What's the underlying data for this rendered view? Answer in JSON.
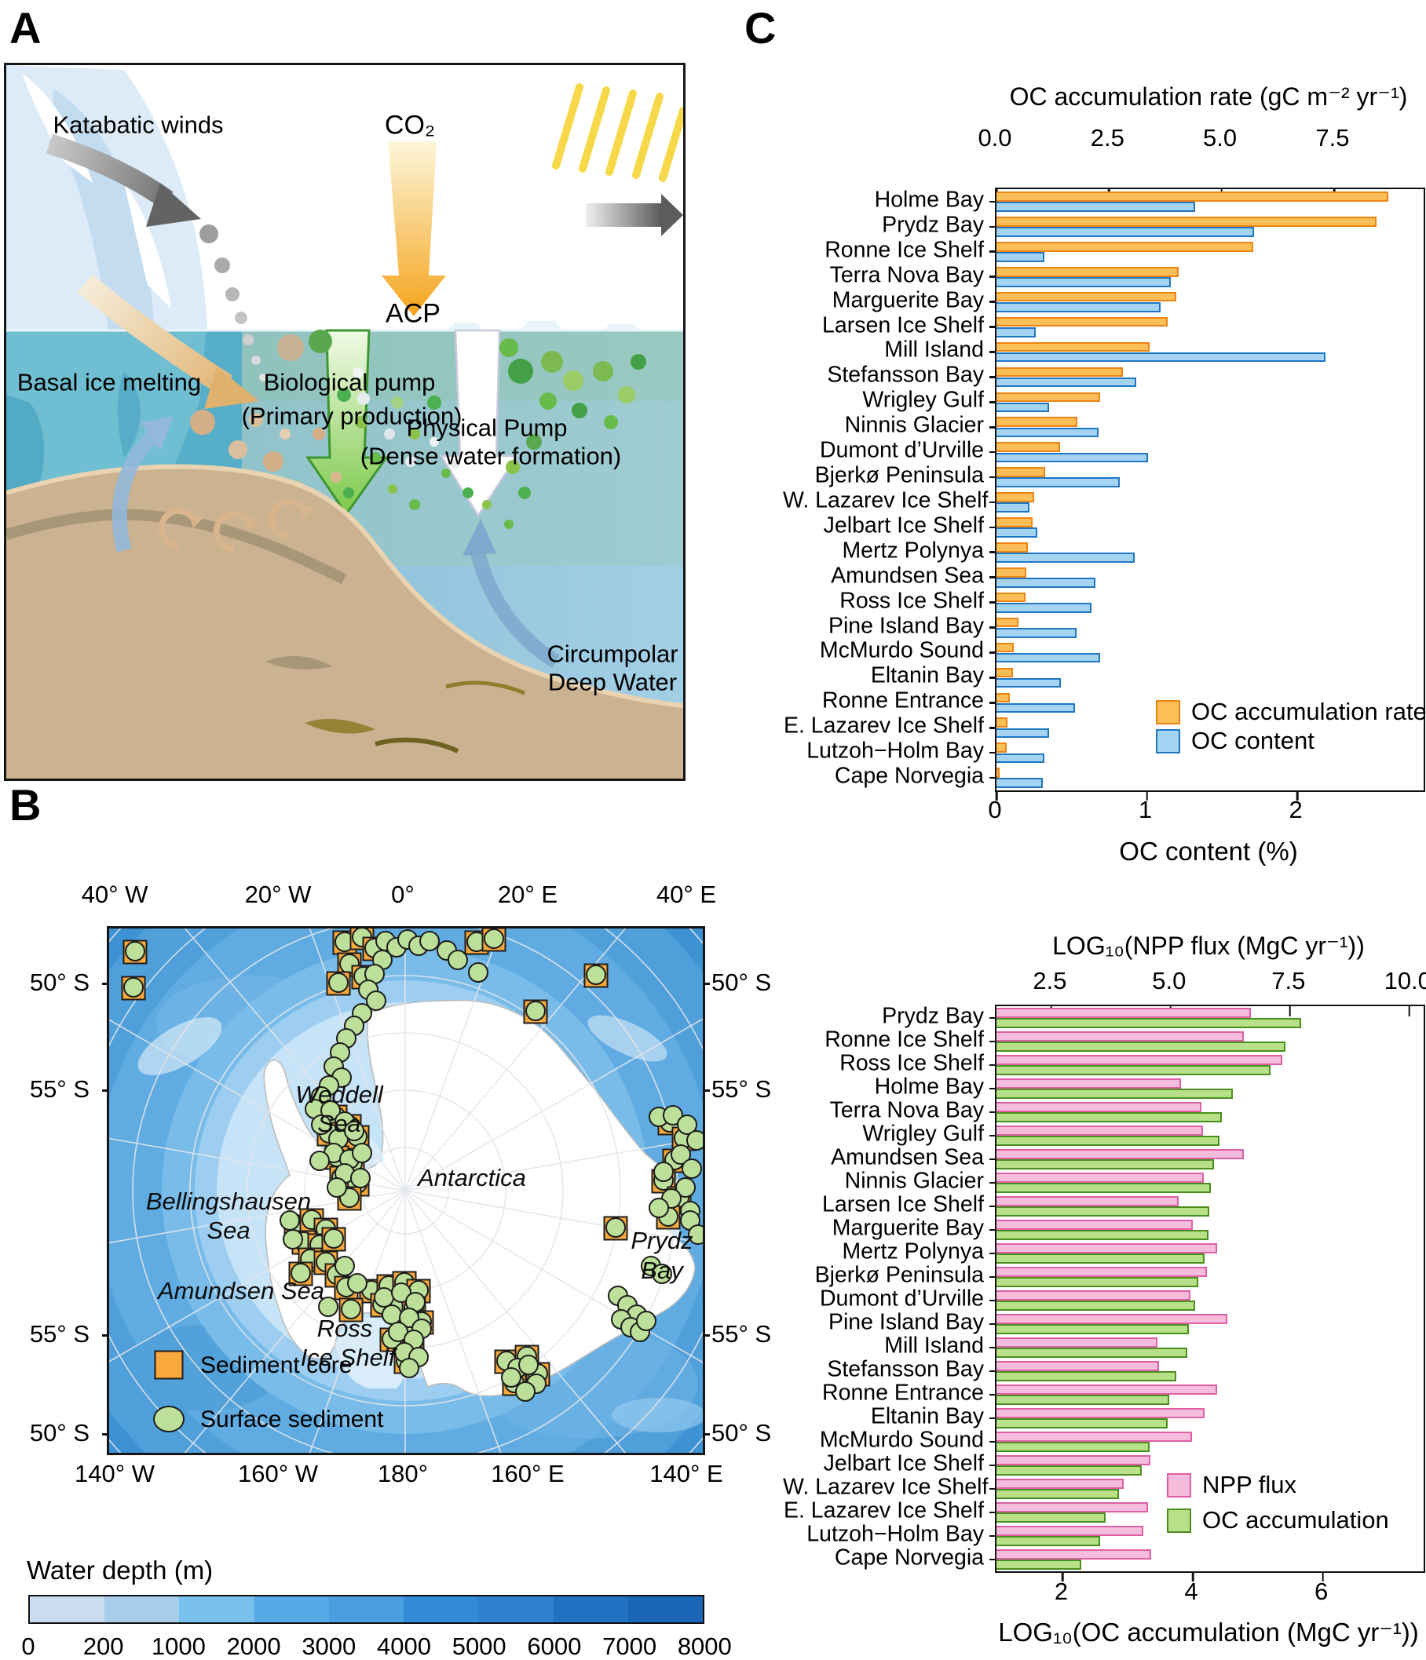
{
  "panel_labels": {
    "a": "A",
    "b": "B",
    "c": "C"
  },
  "panel_a": {
    "katabatic": "Katabatic winds",
    "co2": "CO₂",
    "acp": "ACP",
    "basal": "Basal ice melting",
    "bio1": "Biological pump",
    "bio2": "(Primary production)",
    "phys1": "Physical Pump",
    "phys2": "(Dense water formation)",
    "cdw1": "Circumpolar",
    "cdw2": "Deep Water"
  },
  "map": {
    "labels": {
      "weddell": [
        "Weddell",
        "Sea"
      ],
      "antarctica": [
        "Antarctica"
      ],
      "bellingshausen": [
        "Bellingshausen",
        "Sea"
      ],
      "amundsen": [
        "Amundsen Sea"
      ],
      "ross": [
        "Ross",
        "Ice Shelf"
      ],
      "prydz": [
        "Prydz",
        "Bay"
      ]
    },
    "legend": {
      "square": "Sediment core",
      "circle": "Surface sediment"
    },
    "lon_top": [
      "40° W",
      "20° W",
      "0°",
      "20° E",
      "40° E"
    ],
    "lon_bottom": [
      "140° W",
      "160° W",
      "180°",
      "160° E",
      "140° E"
    ],
    "lat_left": [
      "50° S",
      "55° S",
      "55° S",
      "50° S"
    ],
    "lat_right": [
      "50° S",
      "55° S",
      "55° S",
      "50° S"
    ],
    "markers": {
      "squares": [
        [
          33,
          30
        ],
        [
          31,
          76
        ],
        [
          300,
          18
        ],
        [
          322,
          12
        ],
        [
          338,
          26
        ],
        [
          306,
          46
        ],
        [
          292,
          70
        ],
        [
          324,
          62
        ],
        [
          468,
          18
        ],
        [
          490,
          14
        ],
        [
          543,
          106
        ],
        [
          620,
          60
        ],
        [
          714,
          248
        ],
        [
          732,
          268
        ],
        [
          720,
          296
        ],
        [
          706,
          322
        ],
        [
          726,
          344
        ],
        [
          712,
          368
        ],
        [
          645,
          382
        ],
        [
          506,
          552
        ],
        [
          532,
          546
        ],
        [
          546,
          568
        ],
        [
          516,
          580
        ],
        [
          334,
          462
        ],
        [
          356,
          456
        ],
        [
          376,
          452
        ],
        [
          394,
          462
        ],
        [
          348,
          480
        ],
        [
          368,
          478
        ],
        [
          388,
          484
        ],
        [
          398,
          502
        ],
        [
          378,
          506
        ],
        [
          360,
          524
        ],
        [
          386,
          530
        ],
        [
          378,
          552
        ],
        [
          238,
          380
        ],
        [
          258,
          372
        ],
        [
          276,
          384
        ],
        [
          248,
          400
        ],
        [
          268,
          404
        ],
        [
          286,
          396
        ],
        [
          256,
          422
        ],
        [
          276,
          426
        ],
        [
          244,
          440
        ],
        [
          290,
          442
        ],
        [
          302,
          458
        ],
        [
          308,
          486
        ],
        [
          288,
          240
        ],
        [
          306,
          252
        ],
        [
          280,
          262
        ],
        [
          298,
          274
        ],
        [
          316,
          266
        ],
        [
          290,
          292
        ],
        [
          310,
          300
        ],
        [
          296,
          318
        ],
        [
          316,
          326
        ],
        [
          306,
          344
        ]
      ],
      "circles": [
        [
          352,
          16
        ],
        [
          366,
          24
        ],
        [
          380,
          14
        ],
        [
          394,
          22
        ],
        [
          408,
          16
        ],
        [
          348,
          40
        ],
        [
          338,
          58
        ],
        [
          330,
          78
        ],
        [
          340,
          92
        ],
        [
          322,
          108
        ],
        [
          312,
          124
        ],
        [
          302,
          140
        ],
        [
          294,
          158
        ],
        [
          286,
          176
        ],
        [
          296,
          190
        ],
        [
          280,
          200
        ],
        [
          270,
          214
        ],
        [
          262,
          230
        ],
        [
          430,
          28
        ],
        [
          444,
          40
        ],
        [
          470,
          56
        ],
        [
          700,
          240
        ],
        [
          718,
          238
        ],
        [
          736,
          250
        ],
        [
          728,
          288
        ],
        [
          742,
          306
        ],
        [
          706,
          310
        ],
        [
          734,
          330
        ],
        [
          716,
          344
        ],
        [
          740,
          360
        ],
        [
          700,
          356
        ],
        [
          748,
          270
        ],
        [
          740,
          372
        ],
        [
          750,
          390
        ],
        [
          690,
          430
        ],
        [
          704,
          440
        ],
        [
          648,
          468
        ],
        [
          660,
          480
        ],
        [
          672,
          492
        ],
        [
          652,
          498
        ],
        [
          664,
          508
        ],
        [
          676,
          514
        ],
        [
          684,
          500
        ],
        [
          520,
          560
        ],
        [
          534,
          556
        ],
        [
          544,
          580
        ],
        [
          512,
          572
        ],
        [
          530,
          590
        ],
        [
          350,
          470
        ],
        [
          372,
          464
        ],
        [
          390,
          476
        ],
        [
          360,
          492
        ],
        [
          382,
          496
        ],
        [
          398,
          510
        ],
        [
          368,
          514
        ],
        [
          388,
          524
        ],
        [
          376,
          540
        ],
        [
          394,
          546
        ],
        [
          382,
          560
        ],
        [
          279,
          482
        ],
        [
          234,
          396
        ],
        [
          300,
          430
        ],
        [
          316,
          452
        ],
        [
          230,
          372
        ],
        [
          282,
          232
        ],
        [
          300,
          246
        ],
        [
          292,
          268
        ],
        [
          312,
          258
        ],
        [
          286,
          286
        ],
        [
          306,
          294
        ],
        [
          322,
          286
        ],
        [
          300,
          312
        ],
        [
          320,
          318
        ],
        [
          290,
          330
        ],
        [
          270,
          250
        ],
        [
          268,
          296
        ]
      ]
    }
  },
  "colorbar": {
    "title": "Water depth (m)",
    "tick_labels": [
      "0",
      "200",
      "1000",
      "2000",
      "3000",
      "4000",
      "5000",
      "6000",
      "7000",
      "8000"
    ],
    "colors": [
      "#c9dcf1",
      "#a8ceec",
      "#78c0ee",
      "#55a9e6",
      "#4a9ddf",
      "#338ad6",
      "#2e81cf",
      "#2172c3",
      "#1a65b6"
    ]
  },
  "colors": {
    "orange_fill": "#fcbe57",
    "orange_edge": "#ee8411",
    "blue_fill": "#a5d4f3",
    "blue_edge": "#1f77c4",
    "pink_fill": "#f6bcdc",
    "pink_edge": "#de5fa6",
    "green_fill": "#b7e089",
    "green_edge": "#4a8f1e"
  },
  "chart_data": [
    {
      "type": "bar",
      "orientation": "horizontal",
      "title": "OC accumulation rate (gC m⁻² yr⁻¹)",
      "xlabel": "OC content (%)",
      "top_axis": {
        "min": 0,
        "max": 9.49,
        "ticks": [
          0,
          2.5,
          5,
          7.5
        ],
        "tick_labels": [
          "0.0",
          "2.5",
          "5.0",
          "7.5"
        ]
      },
      "bottom_axis": {
        "min": 0,
        "max": 2.84,
        "ticks": [
          0,
          1,
          2
        ],
        "tick_labels": [
          "0",
          "1",
          "2"
        ]
      },
      "categories": [
        "Holme Bay",
        "Prydz Bay",
        "Ronne Ice Shelf",
        "Terra Nova Bay",
        "Marguerite Bay",
        "Larsen Ice Shelf",
        "Mill Island",
        "Stefansson Bay",
        "Wrigley Gulf",
        "Ninnis Glacier",
        "Dumont d’Urville",
        "Bjerkø Peninsula",
        "W. Lazarev Ice Shelf",
        "Jelbart Ice Shelf",
        "Mertz Polynya",
        "Amundsen Sea",
        "Ross Ice Shelf",
        "Pine Island Bay",
        "McMurdo Sound",
        "Eltanin Bay",
        "Ronne Entrance",
        "E. Lazarev Ice Shelf",
        "Lutzoh−Holm Bay",
        "Cape Norvegia"
      ],
      "series": [
        {
          "name": "OC accumulation rate",
          "axis": "top",
          "fill": "orange_fill",
          "edge": "orange_edge",
          "values": [
            8.7,
            8.45,
            5.7,
            4.05,
            4.0,
            3.8,
            3.4,
            2.8,
            2.3,
            1.8,
            1.41,
            1.08,
            0.84,
            0.8,
            0.69,
            0.67,
            0.64,
            0.48,
            0.39,
            0.37,
            0.3,
            0.24,
            0.23,
            0.07
          ]
        },
        {
          "name": "OC content",
          "axis": "bottom",
          "fill": "blue_fill",
          "edge": "blue_edge",
          "values": [
            1.32,
            1.71,
            0.32,
            1.16,
            1.09,
            0.26,
            2.19,
            0.93,
            0.35,
            0.68,
            1.01,
            0.82,
            0.22,
            0.27,
            0.92,
            0.66,
            0.63,
            0.53,
            0.69,
            0.43,
            0.52,
            0.35,
            0.32,
            0.31
          ]
        }
      ],
      "legend": [
        "OC accumulation rate",
        "OC content"
      ]
    },
    {
      "type": "bar",
      "orientation": "horizontal",
      "title": "LOG₁₀(NPP flux (MgC yr⁻¹))",
      "xlabel": "LOG₁₀(OC accumulation (MgC yr⁻¹))",
      "top_axis": {
        "min": 1.35,
        "max": 10.3,
        "ticks": [
          2.5,
          5,
          7.5,
          10
        ],
        "tick_labels": [
          "2.5",
          "5.0",
          "7.5",
          "10.0"
        ]
      },
      "bottom_axis": {
        "min": 0.98,
        "max": 7.55,
        "ticks": [
          2,
          4,
          6
        ],
        "tick_labels": [
          "2",
          "4",
          "6"
        ]
      },
      "categories": [
        "Prydz Bay",
        "Ronne Ice Shelf",
        "Ross Ice Shelf",
        "Holme Bay",
        "Terra Nova Bay",
        "Wrigley Gulf",
        "Amundsen Sea",
        "Ninnis Glacier",
        "Larsen Ice Shelf",
        "Marguerite Bay",
        "Mertz Polynya",
        "Bjerkø Peninsula",
        "Dumont d’Urville",
        "Pine Island Bay",
        "Mill Island",
        "Stefansson Bay",
        "Ronne Entrance",
        "Eltanin Bay",
        "McMurdo Sound",
        "Jelbart Ice Shelf",
        "W. Lazarev Ice Shelf",
        "E. Lazarev Ice Shelf",
        "Lutzoh−Holm Bay",
        "Cape Norvegia"
      ],
      "series": [
        {
          "name": "NPP flux",
          "axis": "top",
          "fill": "pink_fill",
          "edge": "pink_edge",
          "values": [
            6.68,
            6.53,
            7.34,
            5.22,
            5.65,
            5.68,
            6.53,
            5.7,
            5.17,
            5.46,
            5.98,
            5.76,
            5.41,
            6.19,
            4.72,
            4.76,
            5.97,
            5.71,
            5.44,
            4.57,
            4.01,
            4.52,
            4.42,
            4.59
          ]
        },
        {
          "name": "OC accumulation",
          "axis": "bottom",
          "fill": "green_fill",
          "edge": "green_edge",
          "values": [
            5.66,
            5.42,
            5.19,
            4.62,
            4.45,
            4.41,
            4.32,
            4.28,
            4.25,
            4.24,
            4.18,
            4.08,
            4.03,
            3.94,
            3.92,
            3.74,
            3.64,
            3.61,
            3.34,
            3.22,
            2.87,
            2.66,
            2.57,
            2.29
          ]
        }
      ],
      "legend": [
        "NPP flux",
        "OC accumulation"
      ]
    }
  ]
}
